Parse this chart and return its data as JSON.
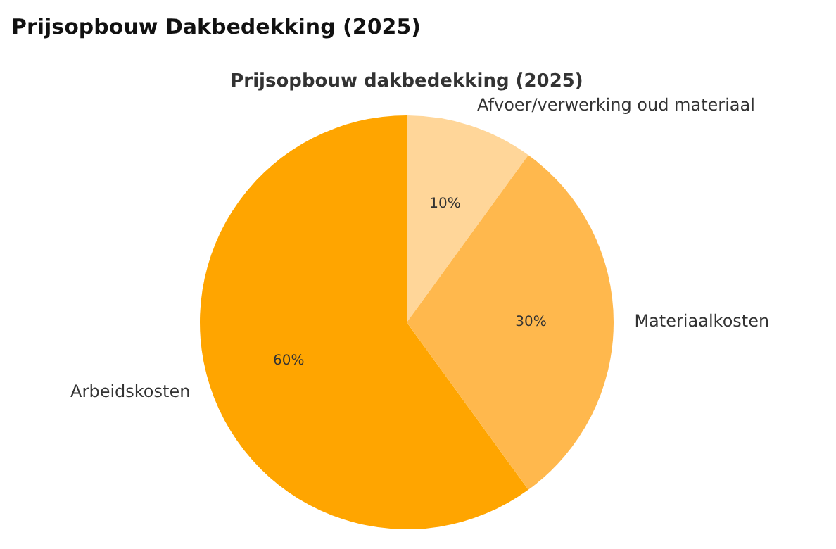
{
  "chart_data": {
    "type": "pie",
    "title": "Prijsopbouw Dakbedekking (2025)",
    "subtitle": "Prijsopbouw dakbedekking (2025)",
    "categories": [
      "Afvoer/verwerking oud materiaal",
      "Materiaalkosten",
      "Arbeidskosten"
    ],
    "values": [
      10,
      30,
      60
    ],
    "colors": [
      "#ffd699",
      "#ffb84d",
      "#ffa500"
    ],
    "value_labels": [
      "10%",
      "30%",
      "60%"
    ],
    "legend": false
  }
}
